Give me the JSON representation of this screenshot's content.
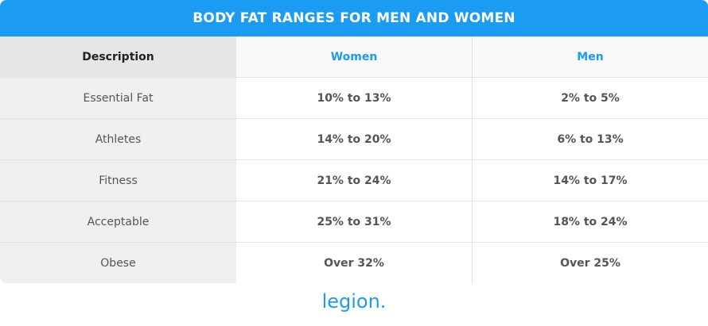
{
  "header": {
    "title": "BODY FAT RANGES FOR MEN AND WOMEN"
  },
  "table": {
    "columns": [
      "Description",
      "Women",
      "Men"
    ],
    "rows": [
      [
        "Essential Fat",
        "10% to 13%",
        "2% to 5%"
      ],
      [
        "Athletes",
        "14% to 20%",
        "6% to 13%"
      ],
      [
        "Fitness",
        "21% to 24%",
        "14% to 17%"
      ],
      [
        "Acceptable",
        "25% to 31%",
        "18% to 24%"
      ],
      [
        "Obese",
        "Over 32%",
        "Over 25%"
      ]
    ]
  },
  "footer": {
    "logo": "legion."
  }
}
